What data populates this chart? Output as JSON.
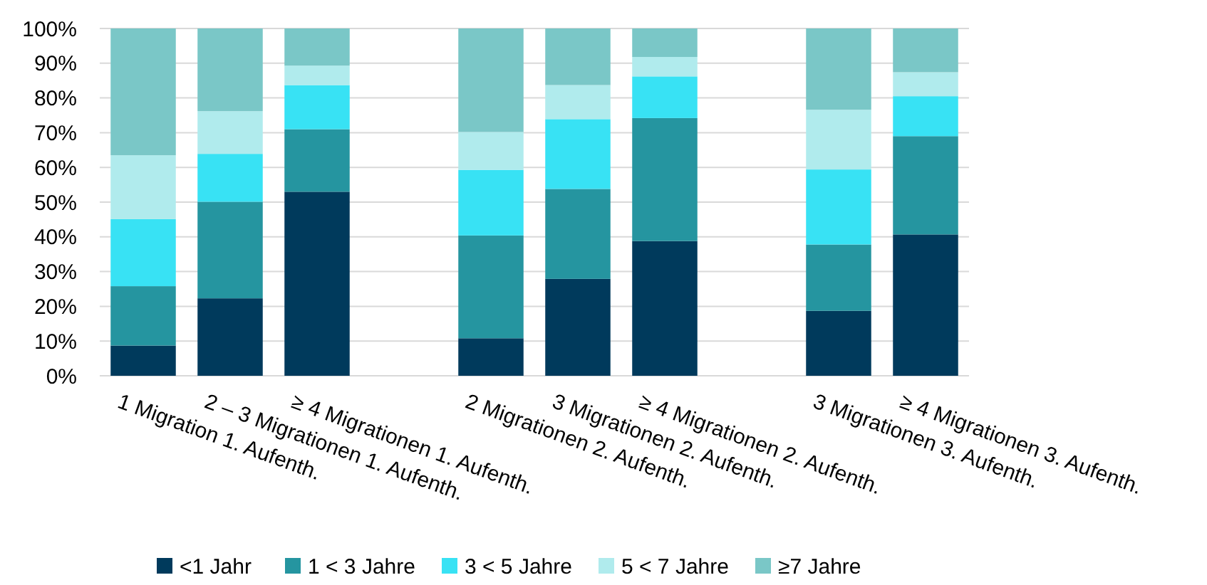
{
  "chart_data": {
    "type": "bar",
    "stacked": true,
    "categories": [
      "1 Migration 1. Aufenth.",
      "2 – 3 Migrationen 1. Aufenth.",
      "≥ 4 Migrationen 1. Aufenth.",
      null,
      "2 Migrationen 2. Aufenth.",
      "3 Migrationen 2. Aufenth.",
      "≥ 4 Migrationen 2. Aufenth.",
      null,
      "3 Migrationen 3. Aufenth.",
      "≥ 4 Migrationen 3. Aufenth."
    ],
    "series": [
      {
        "name": "<1 Jahr",
        "color": "#003a5c",
        "values": [
          8.7,
          22.3,
          53.0,
          null,
          10.8,
          27.9,
          38.8,
          null,
          18.7,
          40.7
        ]
      },
      {
        "name": "1 < 3 Jahre",
        "color": "#2595a0",
        "values": [
          17.1,
          27.8,
          18.0,
          null,
          29.6,
          25.9,
          35.4,
          null,
          19.1,
          28.3
        ]
      },
      {
        "name": "3 < 5 Jahre",
        "color": "#38e2f4",
        "values": [
          19.3,
          13.8,
          12.7,
          null,
          18.9,
          20.1,
          12.0,
          null,
          21.6,
          11.5
        ]
      },
      {
        "name": "5 < 7 Jahre",
        "color": "#b0ebed",
        "values": [
          18.4,
          12.3,
          5.6,
          null,
          10.9,
          9.8,
          5.6,
          null,
          17.2,
          6.9
        ]
      },
      {
        "name": "≥7 Jahre",
        "color": "#7ac7c7",
        "values": [
          36.5,
          23.8,
          10.7,
          null,
          29.8,
          16.3,
          8.2,
          null,
          23.4,
          12.6
        ]
      }
    ],
    "ylim": [
      0,
      100
    ],
    "yticks": [
      {
        "value": 0,
        "label": "0%"
      },
      {
        "value": 10,
        "label": "10%"
      },
      {
        "value": 20,
        "label": "20%"
      },
      {
        "value": 30,
        "label": "30%"
      },
      {
        "value": 40,
        "label": "40%"
      },
      {
        "value": 50,
        "label": "50%"
      },
      {
        "value": 60,
        "label": "60%"
      },
      {
        "value": 70,
        "label": "70%"
      },
      {
        "value": 80,
        "label": "80%"
      },
      {
        "value": 90,
        "label": "90%"
      },
      {
        "value": 100,
        "label": "100%"
      }
    ],
    "grid": "y",
    "legend": "bottom"
  }
}
